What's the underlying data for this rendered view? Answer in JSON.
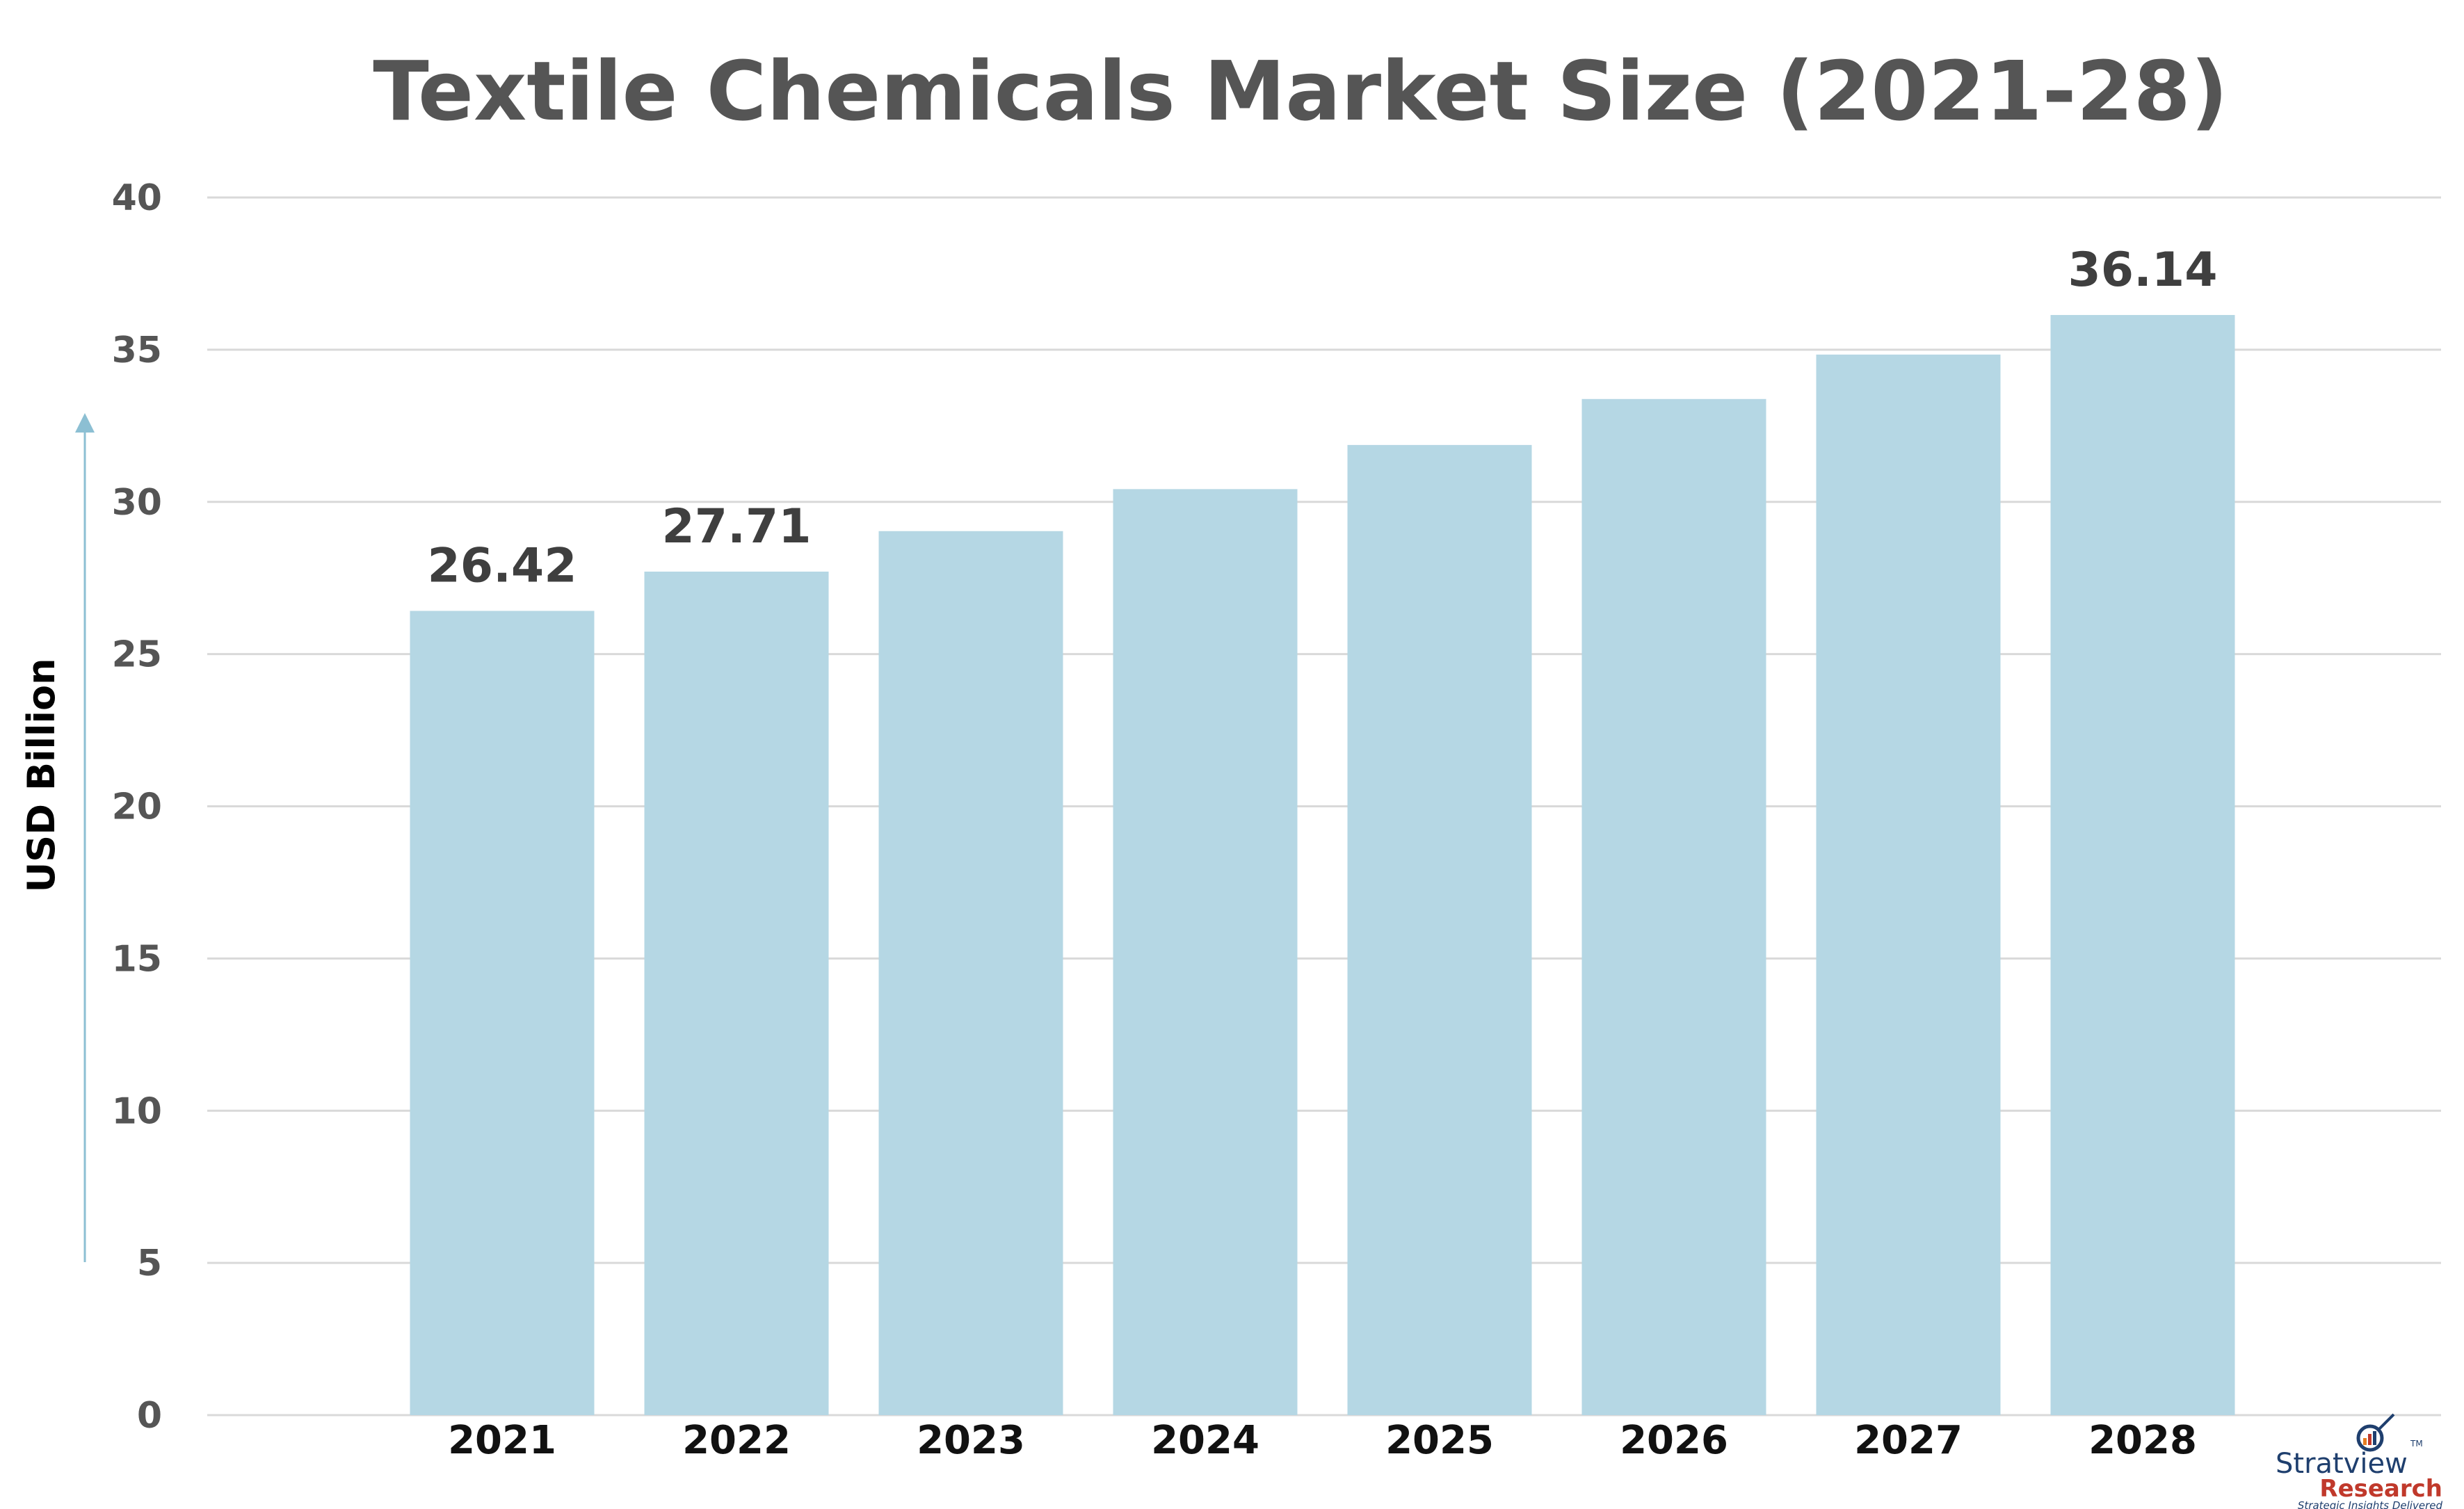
{
  "chart_data": {
    "type": "bar",
    "title": "Textile Chemicals Market Size (2021-28)",
    "ylabel": "USD Billion",
    "xlabel": "",
    "categories": [
      "2021",
      "2022",
      "2023",
      "2024",
      "2025",
      "2026",
      "2027",
      "2028"
    ],
    "values": [
      26.42,
      27.71,
      29.04,
      30.42,
      31.87,
      33.38,
      34.84,
      36.14
    ],
    "data_labels": {
      "0": "26.42",
      "1": "27.71",
      "7": "36.14"
    },
    "ylim": [
      0,
      40
    ],
    "yticks": [
      0,
      5,
      10,
      15,
      20,
      25,
      30,
      35,
      40
    ],
    "grid": true,
    "bar_color": "#b5d7e4",
    "grid_color": "#d9d9d9",
    "axis_arrow_color": "#8cbfd3"
  },
  "branding": {
    "logo_name": "Stratview",
    "logo_name_suffix": "Research",
    "logo_tagline": "Strategic Insights Delivered",
    "logo_tm": "TM",
    "logo_icon": "magnifier-chart-icon"
  }
}
